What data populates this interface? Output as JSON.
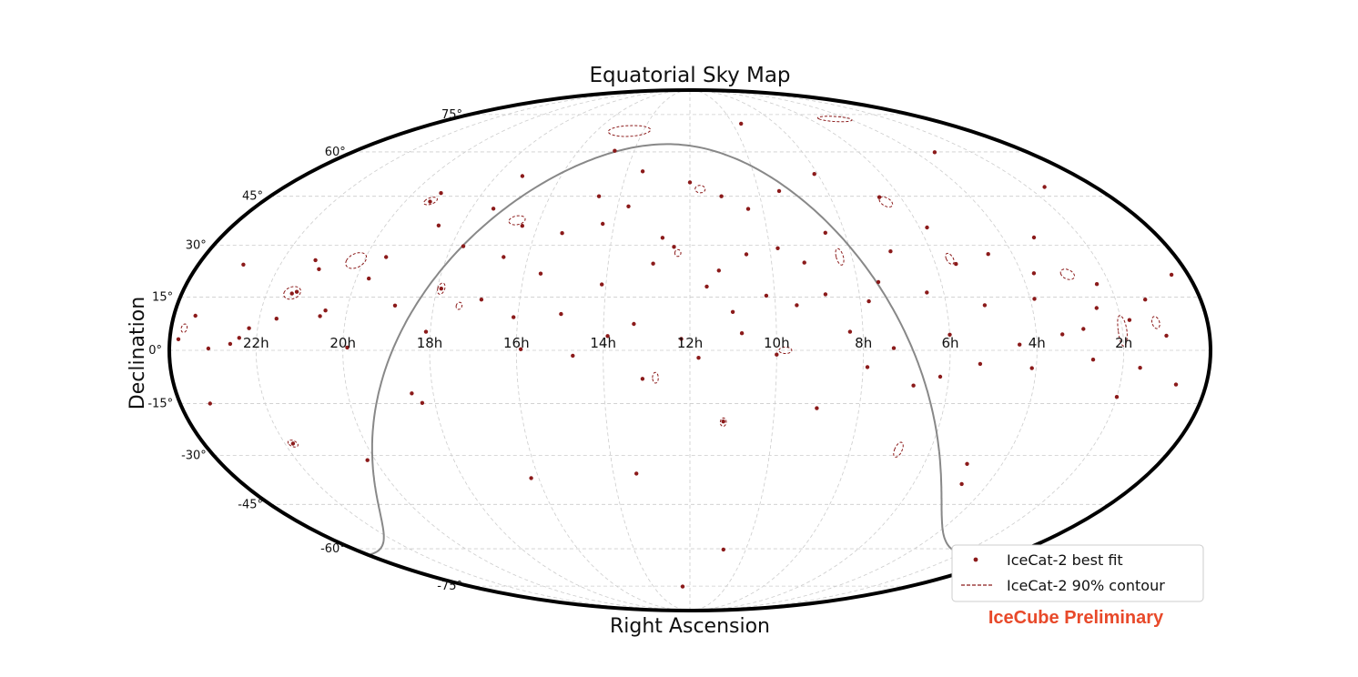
{
  "chart_data": {
    "type": "scatter",
    "projection": "mollweide",
    "coordinate_system": "equatorial",
    "title": "Equatorial Sky Map",
    "xlabel": "Right Ascension",
    "ylabel": "Declination",
    "x_ticks": [
      "22h",
      "20h",
      "18h",
      "16h",
      "14h",
      "12h",
      "10h",
      "8h",
      "6h",
      "4h",
      "2h"
    ],
    "y_ticks": [
      "75°",
      "60°",
      "45°",
      "30°",
      "15°",
      "0°",
      "-15°",
      "-30°",
      "-45°",
      "-60°",
      "-75°"
    ],
    "grid": true,
    "ra_direction": "increasing-to-left",
    "legend": {
      "position": "bottom-right",
      "entries": [
        {
          "label": "IceCat-2 best fit",
          "marker": "point",
          "color": "#8b1a1a"
        },
        {
          "label": "IceCat-2 90% contour",
          "marker": "dashed-line",
          "color": "#8b1a1a"
        }
      ]
    },
    "annotation": {
      "text": "IceCube Preliminary",
      "color": "#e8492a"
    },
    "colors": {
      "events": "#8b1a1a",
      "galactic_plane": "#888888",
      "grid": "#cccccc",
      "boundary": "#000000"
    },
    "galactic_plane": {
      "shown": true
    },
    "series": [
      {
        "name": "IceCat-2 best fit",
        "x_unit": "h",
        "y_unit": "deg",
        "points": [
          [
            22.6,
            1.8
          ],
          [
            22.4,
            3.5
          ],
          [
            22.2,
            6.2
          ],
          [
            21.6,
            8.9
          ],
          [
            21.3,
            16.5
          ],
          [
            21.4,
            16.0
          ],
          [
            21.2,
            25.6
          ],
          [
            21.0,
            23.0
          ],
          [
            20.6,
            9.6
          ],
          [
            20.5,
            11.2
          ],
          [
            19.9,
            0.8
          ],
          [
            19.7,
            20.3
          ],
          [
            19.5,
            26.5
          ],
          [
            19.3,
            43.3
          ],
          [
            19.2,
            46.0
          ],
          [
            18.9,
            12.6
          ],
          [
            18.6,
            35.9
          ],
          [
            18.5,
            -12.1
          ],
          [
            18.3,
            -14.8
          ],
          [
            18.1,
            5.2
          ],
          [
            17.9,
            17.4
          ],
          [
            17.7,
            29.7
          ],
          [
            17.4,
            41.1
          ],
          [
            17.2,
            51.6
          ],
          [
            16.9,
            14.3
          ],
          [
            16.6,
            26.5
          ],
          [
            16.4,
            35.8
          ],
          [
            16.1,
            9.3
          ],
          [
            15.9,
            0.3
          ],
          [
            15.6,
            21.7
          ],
          [
            15.3,
            33.6
          ],
          [
            15.0,
            10.2
          ],
          [
            14.7,
            -1.5
          ],
          [
            14.6,
            45.0
          ],
          [
            14.3,
            36.4
          ],
          [
            14.1,
            18.6
          ],
          [
            13.9,
            4.0
          ],
          [
            13.7,
            41.8
          ],
          [
            13.5,
            53.2
          ],
          [
            13.3,
            7.4
          ],
          [
            13.1,
            -8.0
          ],
          [
            12.9,
            24.6
          ],
          [
            12.7,
            32.2
          ],
          [
            12.4,
            29.5
          ],
          [
            12.2,
            3.2
          ],
          [
            12.0,
            49.5
          ],
          [
            11.8,
            -2.1
          ],
          [
            11.6,
            18.0
          ],
          [
            11.3,
            22.6
          ],
          [
            11.2,
            -20.1
          ],
          [
            11.1,
            45.0
          ],
          [
            11.0,
            10.8
          ],
          [
            10.8,
            4.8
          ],
          [
            10.6,
            27.3
          ],
          [
            10.4,
            41.0
          ],
          [
            10.2,
            15.4
          ],
          [
            10.0,
            -1.2
          ],
          [
            9.8,
            29.1
          ],
          [
            9.5,
            12.7
          ],
          [
            9.4,
            46.7
          ],
          [
            9.2,
            24.9
          ],
          [
            9.0,
            -16.3
          ],
          [
            8.8,
            15.8
          ],
          [
            8.5,
            33.7
          ],
          [
            8.3,
            5.2
          ],
          [
            8.1,
            52.3
          ],
          [
            7.9,
            -4.7
          ],
          [
            7.8,
            13.8
          ],
          [
            7.5,
            19.3
          ],
          [
            7.3,
            0.6
          ],
          [
            7.0,
            28.2
          ],
          [
            6.8,
            -9.9
          ],
          [
            6.6,
            44.7
          ],
          [
            6.4,
            16.3
          ],
          [
            6.2,
            -7.4
          ],
          [
            6.0,
            4.4
          ],
          [
            5.8,
            35.3
          ],
          [
            5.5,
            24.5
          ],
          [
            5.3,
            -3.8
          ],
          [
            5.1,
            12.7
          ],
          [
            4.9,
            -32.5
          ],
          [
            4.6,
            27.4
          ],
          [
            4.4,
            1.6
          ],
          [
            4.1,
            -5.0
          ],
          [
            3.9,
            14.5
          ],
          [
            3.7,
            21.8
          ],
          [
            3.4,
            4.5
          ],
          [
            3.2,
            32.3
          ],
          [
            2.9,
            6.0
          ],
          [
            2.7,
            -2.6
          ],
          [
            2.5,
            11.9
          ],
          [
            2.3,
            18.7
          ],
          [
            2.0,
            -13.1
          ],
          [
            1.8,
            8.5
          ],
          [
            1.6,
            -4.9
          ],
          [
            1.3,
            14.3
          ],
          [
            1.0,
            4.1
          ],
          [
            0.7,
            -9.6
          ],
          [
            0.4,
            21.4
          ],
          [
            23.8,
            3.1
          ],
          [
            23.5,
            9.7
          ],
          [
            23.3,
            -15.0
          ],
          [
            23.1,
            0.5
          ],
          [
            22.9,
            24.3
          ],
          [
            21.8,
            -26.5
          ],
          [
            20.2,
            -31.4
          ],
          [
            16.2,
            -36.8
          ],
          [
            13.4,
            -35.4
          ],
          [
            10.8,
            -60.3
          ],
          [
            12.4,
            -75.2
          ],
          [
            4.7,
            -38.6
          ],
          [
            1.5,
            48.0
          ],
          [
            14.7,
            60.4
          ],
          [
            3.3,
            59.9
          ],
          [
            9.6,
            71.0
          ]
        ]
      }
    ],
    "contours": [
      {
        "ra": 21.4,
        "dec": 16.2,
        "a_deg": 2.8,
        "b_deg": 1.8
      },
      {
        "ra": 20.2,
        "dec": 25.5,
        "a_deg": 3.2,
        "b_deg": 2.3
      },
      {
        "ra": 16.6,
        "dec": 37.5,
        "a_deg": 2.5,
        "b_deg": 1.4
      },
      {
        "ra": 14.6,
        "dec": 68.0,
        "a_deg": 5.0,
        "b_deg": 2.2
      },
      {
        "ra": 11.7,
        "dec": 47.3,
        "a_deg": 1.5,
        "b_deg": 1.2
      },
      {
        "ra": 8.3,
        "dec": 26.6,
        "a_deg": 1.2,
        "b_deg": 2.4
      },
      {
        "ra": 6.5,
        "dec": 43.2,
        "a_deg": 1.8,
        "b_deg": 1.6
      },
      {
        "ra": 2.9,
        "dec": 21.5,
        "a_deg": 2.2,
        "b_deg": 1.5
      },
      {
        "ra": 2.0,
        "dec": 5.5,
        "a_deg": 1.5,
        "b_deg": 4.3
      },
      {
        "ra": 1.2,
        "dec": 7.8,
        "a_deg": 1.3,
        "b_deg": 1.7
      },
      {
        "ra": 6.8,
        "dec": -28.3,
        "a_deg": 1.3,
        "b_deg": 2.2
      },
      {
        "ra": 11.2,
        "dec": -20.3,
        "a_deg": 1.0,
        "b_deg": 1.2
      },
      {
        "ra": 12.8,
        "dec": -7.7,
        "a_deg": 1.0,
        "b_deg": 1.5
      },
      {
        "ra": 23.7,
        "dec": 6.2,
        "a_deg": 1.0,
        "b_deg": 1.2
      },
      {
        "ra": 19.3,
        "dec": 43.5,
        "a_deg": 1.8,
        "b_deg": 1.2
      },
      {
        "ra": 17.9,
        "dec": 17.4,
        "a_deg": 1.2,
        "b_deg": 1.6
      },
      {
        "ra": 5.6,
        "dec": 26.0,
        "a_deg": 1.2,
        "b_deg": 1.6
      },
      {
        "ra": 9.8,
        "dec": 0.0,
        "a_deg": 2.2,
        "b_deg": 0.9
      },
      {
        "ra": 4.7,
        "dec": 73.0,
        "a_deg": 3.5,
        "b_deg": 1.2
      },
      {
        "ra": 21.8,
        "dec": -26.5,
        "a_deg": 1.5,
        "b_deg": 1.0
      },
      {
        "ra": 17.4,
        "dec": 12.5,
        "a_deg": 1.0,
        "b_deg": 1.0
      },
      {
        "ra": 12.3,
        "dec": 27.7,
        "a_deg": 1.0,
        "b_deg": 1.0
      }
    ]
  }
}
